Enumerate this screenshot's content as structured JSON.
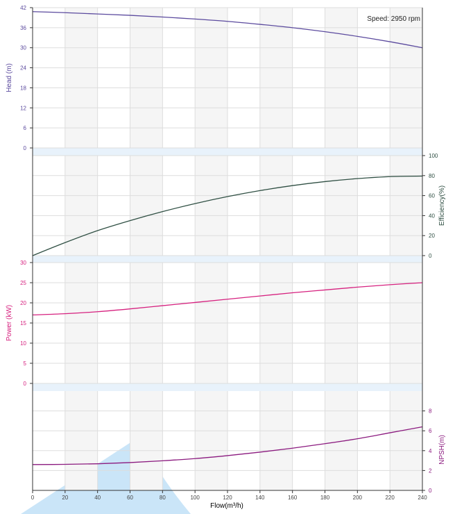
{
  "colors": {
    "head": "#5b4a9e",
    "efficiency": "#2f4f43",
    "power": "#d6217f",
    "npsh": "#8b1a7f",
    "axis_text": "#444444",
    "grid": "#dddddd",
    "band": "#e8f2fb",
    "stripe": "#f5f5f5",
    "watermark": "#b8dcf5"
  },
  "speed_label": "Speed: 2950 rpm",
  "chart_data": [
    {
      "type": "line",
      "panel": "head",
      "ylabel": "Head (m)",
      "axis_side": "left",
      "ylim": [
        0,
        42
      ],
      "yticks": [
        0,
        6,
        12,
        18,
        24,
        30,
        36,
        42
      ],
      "xlim": [
        0,
        240
      ],
      "series": [
        {
          "x": [
            0,
            20,
            40,
            60,
            80,
            100,
            120,
            140,
            160,
            180,
            200,
            220,
            240
          ],
          "y": [
            40.8,
            40.5,
            40.1,
            39.7,
            39.2,
            38.6,
            37.9,
            37.0,
            36.0,
            34.8,
            33.4,
            31.8,
            30.0
          ]
        }
      ]
    },
    {
      "type": "line",
      "panel": "efficiency",
      "ylabel": "Efficiency(%)",
      "axis_side": "right",
      "ylim": [
        0,
        100
      ],
      "yticks": [
        0,
        20,
        40,
        60,
        80,
        100
      ],
      "xlim": [
        0,
        240
      ],
      "series": [
        {
          "x": [
            0,
            20,
            40,
            60,
            80,
            100,
            120,
            140,
            160,
            180,
            200,
            220,
            240
          ],
          "y": [
            0,
            13,
            25,
            35,
            44,
            52,
            59,
            65,
            70,
            74,
            77,
            79,
            79.5
          ]
        }
      ]
    },
    {
      "type": "line",
      "panel": "power",
      "ylabel": "Power (kW)",
      "axis_side": "left",
      "ylim": [
        0,
        30
      ],
      "yticks": [
        0,
        5,
        10,
        15,
        20,
        25,
        30
      ],
      "xlim": [
        0,
        240
      ],
      "series": [
        {
          "x": [
            0,
            20,
            40,
            60,
            80,
            100,
            120,
            140,
            160,
            180,
            200,
            220,
            240
          ],
          "y": [
            17.0,
            17.3,
            17.8,
            18.5,
            19.3,
            20.1,
            20.9,
            21.7,
            22.5,
            23.2,
            23.9,
            24.5,
            25.0
          ]
        }
      ]
    },
    {
      "type": "line",
      "panel": "npsh",
      "ylabel": "NPSH(m)",
      "xlabel": "Flow(m³/h)",
      "axis_side": "right",
      "ylim": [
        0,
        10
      ],
      "yticks": [
        0,
        2,
        4,
        6,
        8
      ],
      "xlim": [
        0,
        240
      ],
      "xticks": [
        0,
        20,
        40,
        60,
        80,
        100,
        120,
        140,
        160,
        180,
        200,
        220,
        240
      ],
      "series": [
        {
          "x": [
            0,
            20,
            40,
            60,
            80,
            100,
            120,
            140,
            160,
            180,
            200,
            220,
            240
          ],
          "y": [
            2.6,
            2.62,
            2.68,
            2.8,
            2.98,
            3.2,
            3.5,
            3.85,
            4.25,
            4.7,
            5.2,
            5.8,
            6.4
          ]
        }
      ]
    }
  ]
}
